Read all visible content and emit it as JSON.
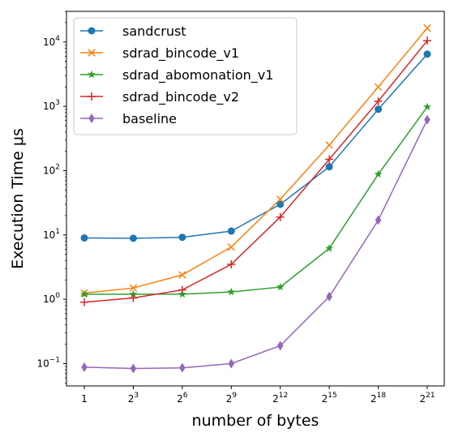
{
  "chart_data": {
    "type": "line",
    "xlabel": "number of bytes",
    "ylabel": "Execution Time μs",
    "yscale": "log",
    "ylim": [
      0.045,
      30000
    ],
    "x_ticks": [
      {
        "label": "1",
        "base": "",
        "exp": ""
      },
      {
        "label": "2^3",
        "base": "2",
        "exp": "3"
      },
      {
        "label": "2^6",
        "base": "2",
        "exp": "6"
      },
      {
        "label": "2^9",
        "base": "2",
        "exp": "9"
      },
      {
        "label": "2^12",
        "base": "2",
        "exp": "12"
      },
      {
        "label": "2^15",
        "base": "2",
        "exp": "15"
      },
      {
        "label": "2^18",
        "base": "2",
        "exp": "18"
      },
      {
        "label": "2^21",
        "base": "2",
        "exp": "21"
      }
    ],
    "y_ticks": [
      {
        "value": 0.1,
        "base": "10",
        "exp": "−1"
      },
      {
        "value": 1,
        "base": "10",
        "exp": "0"
      },
      {
        "value": 10,
        "base": "10",
        "exp": "1"
      },
      {
        "value": 100,
        "base": "10",
        "exp": "2"
      },
      {
        "value": 1000,
        "base": "10",
        "exp": "3"
      },
      {
        "value": 10000,
        "base": "10",
        "exp": "4"
      }
    ],
    "legend_position": "top-left",
    "series": [
      {
        "name": "sandcrust",
        "color": "#1f77b4",
        "marker": "circle",
        "values": [
          9.0,
          8.9,
          9.2,
          11.5,
          30,
          115,
          900,
          6500
        ]
      },
      {
        "name": "sdrad_bincode_v1",
        "color": "#ff7f0e",
        "marker": "x",
        "values": [
          1.25,
          1.5,
          2.4,
          6.5,
          36,
          250,
          2000,
          16500
        ]
      },
      {
        "name": "sdrad_abomonation_v1",
        "color": "#2ca02c",
        "marker": "star",
        "values": [
          1.2,
          1.2,
          1.2,
          1.3,
          1.55,
          6.2,
          88,
          980
        ]
      },
      {
        "name": "sdrad_bincode_v2",
        "color": "#d62728",
        "marker": "plus",
        "values": [
          0.9,
          1.05,
          1.4,
          3.5,
          19,
          150,
          1200,
          10500
        ]
      },
      {
        "name": "baseline",
        "color": "#9467bd",
        "marker": "diamond",
        "values": [
          0.088,
          0.084,
          0.086,
          0.1,
          0.19,
          1.1,
          17,
          620
        ]
      }
    ]
  }
}
